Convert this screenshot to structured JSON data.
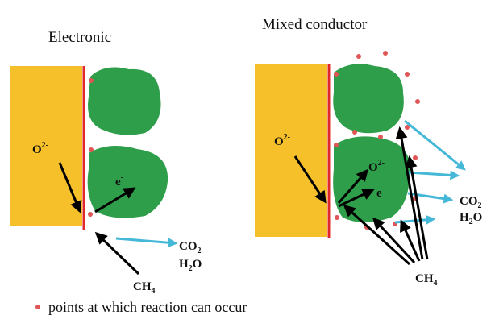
{
  "left": {
    "title": "Electronic",
    "o_ion": {
      "base": "O",
      "sup": "2-"
    },
    "electron": {
      "base": "e",
      "sup": "-"
    },
    "co2": {
      "base": "CO",
      "sub": "2"
    },
    "h2o": {
      "base": "H",
      "sub": "2",
      "rest": "O"
    },
    "ch4": {
      "base": "CH",
      "sub": "4"
    }
  },
  "right": {
    "title": "Mixed conductor",
    "o_ion": {
      "base": "O",
      "sup": "2-"
    },
    "o_ion_inner": {
      "base": "O",
      "sup": "2-"
    },
    "electron": {
      "base": "e",
      "sup": "-"
    },
    "co2": {
      "base": "CO",
      "sub": "2"
    },
    "h2o": {
      "base": "H",
      "sub": "2",
      "rest": "O"
    },
    "ch4": {
      "base": "CH",
      "sub": "4"
    }
  },
  "legend": "points at which reaction can occur"
}
